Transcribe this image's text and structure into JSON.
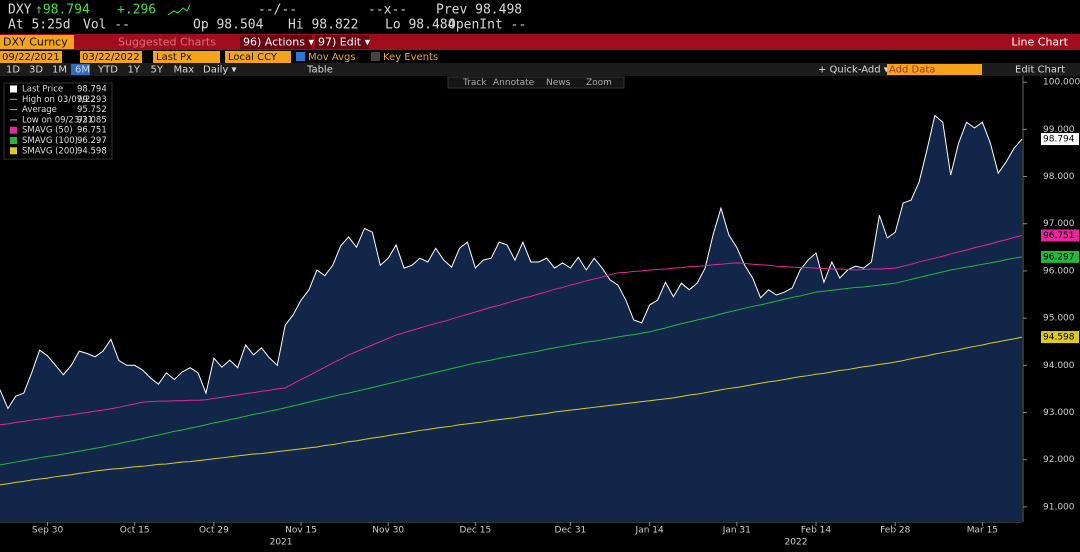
{
  "header": {
    "ticker": "DXY",
    "price": "↑98.794",
    "change": "+.296",
    "time_sep": "--/--",
    "size_sep": "--x--",
    "prev": "Prev 98.498",
    "at": "At 5:25d",
    "vol": "Vol --",
    "open": "Op 98.504",
    "high": "Hi 98.822",
    "low": "Lo 98.484",
    "open_int": "OpenInt --"
  },
  "toolbar": {
    "security": "DXY Curncy",
    "suggested": "Suggested Charts",
    "actions": "96) Actions ▾",
    "edit": "97) Edit ▾",
    "chart_type": "Line Chart",
    "start_date": "09/22/2021",
    "end_date": "03/22/2022",
    "field": "Last Px",
    "currency": "Local CCY",
    "mov_avgs": "Mov Avgs",
    "key_events": "Key Events",
    "periods": [
      "1D",
      "3D",
      "1M",
      "6M",
      "YTD",
      "1Y",
      "5Y",
      "Max"
    ],
    "frequency": "Daily ▾",
    "table": "Table",
    "quick_add": "+ Quick-Add ▾",
    "add_data": "Add Data",
    "edit_chart": "Edit Chart",
    "chart_tools": [
      "Track",
      "Annotate",
      "News",
      "Zoom"
    ]
  },
  "chart_data": {
    "type": "line",
    "legend": "top-left",
    "grid": false,
    "categories": [
      null,
      null,
      null,
      null,
      null,
      null,
      "Sep 30",
      null,
      null,
      null,
      null,
      null,
      null,
      null,
      null,
      null,
      null,
      "Oct 15",
      null,
      null,
      null,
      null,
      null,
      null,
      null,
      null,
      null,
      "Oct 29",
      null,
      null,
      null,
      null,
      null,
      null,
      null,
      null,
      null,
      null,
      "Nov 15",
      null,
      null,
      null,
      null,
      null,
      null,
      null,
      null,
      null,
      null,
      "Nov 30",
      null,
      null,
      null,
      null,
      null,
      null,
      null,
      null,
      null,
      null,
      "Dec 15",
      null,
      null,
      null,
      null,
      null,
      null,
      null,
      null,
      null,
      null,
      null,
      "Dec 31",
      null,
      null,
      null,
      null,
      null,
      null,
      null,
      null,
      null,
      "Jan 14",
      null,
      null,
      null,
      null,
      null,
      null,
      null,
      null,
      null,
      null,
      "Jan 31",
      null,
      null,
      null,
      null,
      null,
      null,
      null,
      null,
      null,
      "Feb 14",
      null,
      null,
      null,
      null,
      null,
      null,
      null,
      null,
      null,
      "Feb 28",
      null,
      null,
      null,
      null,
      null,
      null,
      null,
      null,
      null,
      null,
      "Mar 15",
      null,
      null,
      null,
      null,
      null
    ],
    "year_labels": [
      "2021",
      "2022"
    ],
    "series": [
      {
        "name": "Last Price",
        "color": "#ffffff",
        "fill": "#112649",
        "values": [
          93.48,
          93.085,
          93.35,
          93.41,
          93.84,
          94.32,
          94.2,
          94.0,
          93.8,
          94.0,
          94.3,
          94.25,
          94.18,
          94.3,
          94.55,
          94.1,
          94.0,
          94.0,
          93.9,
          93.73,
          93.6,
          93.84,
          93.7,
          93.86,
          93.95,
          93.84,
          93.41,
          94.15,
          93.96,
          94.11,
          93.95,
          94.43,
          94.22,
          94.37,
          94.16,
          94.0,
          94.85,
          95.07,
          95.38,
          95.6,
          96.02,
          95.9,
          96.12,
          96.53,
          96.72,
          96.5,
          96.9,
          96.82,
          96.12,
          96.27,
          96.55,
          96.06,
          96.12,
          96.27,
          96.19,
          96.48,
          96.23,
          96.08,
          96.48,
          96.61,
          96.06,
          96.23,
          96.27,
          96.61,
          96.55,
          96.23,
          96.61,
          96.19,
          96.19,
          96.27,
          96.06,
          96.17,
          96.06,
          96.29,
          96.02,
          96.27,
          96.06,
          95.81,
          95.7,
          95.38,
          94.96,
          94.9,
          95.28,
          95.38,
          95.76,
          95.45,
          95.74,
          95.6,
          95.74,
          96.06,
          96.76,
          97.33,
          96.76,
          96.5,
          96.12,
          95.85,
          95.43,
          95.6,
          95.49,
          95.55,
          95.64,
          96.02,
          96.23,
          96.38,
          95.76,
          96.19,
          95.85,
          96.02,
          96.1,
          96.06,
          96.19,
          97.18,
          96.7,
          96.82,
          97.44,
          97.5,
          97.88,
          98.56,
          99.293,
          99.15,
          98.03,
          98.71,
          99.15,
          99.03,
          99.15,
          98.71,
          98.07,
          98.31,
          98.6,
          98.794
        ]
      },
      {
        "name": "SMAVG (50)",
        "color": "#e8259a",
        "values": [
          92.74,
          92.76,
          92.79,
          92.81,
          92.84,
          92.86,
          92.88,
          92.91,
          92.93,
          92.95,
          92.98,
          93.0,
          93.03,
          93.05,
          93.08,
          93.11,
          93.15,
          93.18,
          93.22,
          93.23,
          93.24,
          93.24,
          93.25,
          93.25,
          93.26,
          93.26,
          93.27,
          93.3,
          93.32,
          93.35,
          93.37,
          93.4,
          93.42,
          93.45,
          93.47,
          93.5,
          93.52,
          93.61,
          93.7,
          93.78,
          93.87,
          93.96,
          94.05,
          94.13,
          94.22,
          94.29,
          94.36,
          94.43,
          94.5,
          94.57,
          94.64,
          94.69,
          94.74,
          94.79,
          94.84,
          94.89,
          94.93,
          94.98,
          95.03,
          95.08,
          95.13,
          95.18,
          95.23,
          95.27,
          95.32,
          95.37,
          95.42,
          95.46,
          95.51,
          95.56,
          95.61,
          95.65,
          95.7,
          95.74,
          95.79,
          95.83,
          95.87,
          95.92,
          95.96,
          95.97,
          95.99,
          96.0,
          96.02,
          96.03,
          96.04,
          96.06,
          96.07,
          96.09,
          96.1,
          96.11,
          96.13,
          96.14,
          96.16,
          96.17,
          96.16,
          96.14,
          96.13,
          96.12,
          96.1,
          96.09,
          96.08,
          96.07,
          96.07,
          96.06,
          96.05,
          96.04,
          96.04,
          96.03,
          96.02,
          96.03,
          96.04,
          96.04,
          96.05,
          96.06,
          96.1,
          96.14,
          96.19,
          96.23,
          96.27,
          96.31,
          96.36,
          96.4,
          96.44,
          96.49,
          96.53,
          96.57,
          96.62,
          96.66,
          96.71,
          96.751
        ]
      },
      {
        "name": "SMAVG (100)",
        "color": "#22b83e",
        "values": [
          91.89,
          91.92,
          91.95,
          91.98,
          92.01,
          92.04,
          92.07,
          92.09,
          92.12,
          92.15,
          92.18,
          92.21,
          92.24,
          92.27,
          92.31,
          92.34,
          92.38,
          92.41,
          92.45,
          92.49,
          92.52,
          92.56,
          92.6,
          92.63,
          92.67,
          92.7,
          92.74,
          92.78,
          92.81,
          92.85,
          92.88,
          92.92,
          92.96,
          92.99,
          93.03,
          93.06,
          93.1,
          93.14,
          93.18,
          93.22,
          93.26,
          93.3,
          93.34,
          93.38,
          93.41,
          93.45,
          93.49,
          93.53,
          93.57,
          93.61,
          93.65,
          93.69,
          93.73,
          93.77,
          93.81,
          93.85,
          93.89,
          93.93,
          93.97,
          94.01,
          94.05,
          94.08,
          94.11,
          94.15,
          94.18,
          94.21,
          94.24,
          94.27,
          94.3,
          94.34,
          94.37,
          94.4,
          94.43,
          94.46,
          94.49,
          94.51,
          94.54,
          94.57,
          94.6,
          94.63,
          94.65,
          94.68,
          94.71,
          94.75,
          94.79,
          94.84,
          94.88,
          94.92,
          94.96,
          95.0,
          95.04,
          95.09,
          95.13,
          95.17,
          95.21,
          95.25,
          95.28,
          95.32,
          95.36,
          95.4,
          95.44,
          95.47,
          95.51,
          95.55,
          95.57,
          95.59,
          95.61,
          95.63,
          95.65,
          95.66,
          95.68,
          95.7,
          95.72,
          95.74,
          95.78,
          95.82,
          95.86,
          95.9,
          95.94,
          95.98,
          96.02,
          96.05,
          96.08,
          96.11,
          96.14,
          96.17,
          96.2,
          96.24,
          96.27,
          96.297
        ]
      },
      {
        "name": "SMAVG (200)",
        "color": "#dccb1e",
        "values": [
          91.47,
          91.49,
          91.52,
          91.54,
          91.57,
          91.59,
          91.61,
          91.64,
          91.66,
          91.68,
          91.71,
          91.73,
          91.76,
          91.78,
          91.8,
          91.81,
          91.83,
          91.85,
          91.86,
          91.88,
          91.9,
          91.91,
          91.93,
          91.95,
          91.96,
          91.98,
          92.0,
          92.02,
          92.04,
          92.06,
          92.08,
          92.1,
          92.12,
          92.13,
          92.15,
          92.17,
          92.19,
          92.21,
          92.23,
          92.25,
          92.27,
          92.3,
          92.32,
          92.35,
          92.38,
          92.4,
          92.43,
          92.46,
          92.48,
          92.51,
          92.54,
          92.56,
          92.59,
          92.62,
          92.64,
          92.67,
          92.69,
          92.71,
          92.74,
          92.76,
          92.78,
          92.8,
          92.83,
          92.85,
          92.87,
          92.89,
          92.92,
          92.94,
          92.96,
          92.98,
          93.01,
          93.03,
          93.05,
          93.07,
          93.09,
          93.11,
          93.13,
          93.15,
          93.17,
          93.19,
          93.21,
          93.23,
          93.25,
          93.27,
          93.29,
          93.31,
          93.34,
          93.37,
          93.39,
          93.42,
          93.45,
          93.48,
          93.51,
          93.53,
          93.56,
          93.59,
          93.62,
          93.65,
          93.67,
          93.7,
          93.73,
          93.76,
          93.78,
          93.81,
          93.83,
          93.86,
          93.89,
          93.91,
          93.94,
          93.97,
          93.99,
          94.02,
          94.04,
          94.07,
          94.1,
          94.14,
          94.17,
          94.2,
          94.24,
          94.27,
          94.3,
          94.33,
          94.37,
          94.4,
          94.43,
          94.47,
          94.5,
          94.53,
          94.56,
          94.598
        ]
      }
    ],
    "stats": [
      {
        "name": "High on 03/07/22",
        "value": 99.293
      },
      {
        "name": "Average",
        "value": 95.752
      },
      {
        "name": "Low on 09/23/21",
        "value": 93.085
      }
    ],
    "ylim": [
      90.68,
      100.13
    ],
    "yticks": [
      {
        "value": 91,
        "label": "91.000"
      },
      {
        "value": 92,
        "label": "92.000"
      },
      {
        "value": 93,
        "label": "93.000"
      },
      {
        "value": 94,
        "label": "94.000"
      },
      {
        "value": 95,
        "label": "95.000"
      },
      {
        "value": 96,
        "label": "96.000"
      },
      {
        "value": 97,
        "label": "97.000"
      },
      {
        "value": 98,
        "label": "98.000"
      },
      {
        "value": 99,
        "label": "99.000"
      },
      {
        "value": 100,
        "label": "100.000"
      }
    ]
  }
}
